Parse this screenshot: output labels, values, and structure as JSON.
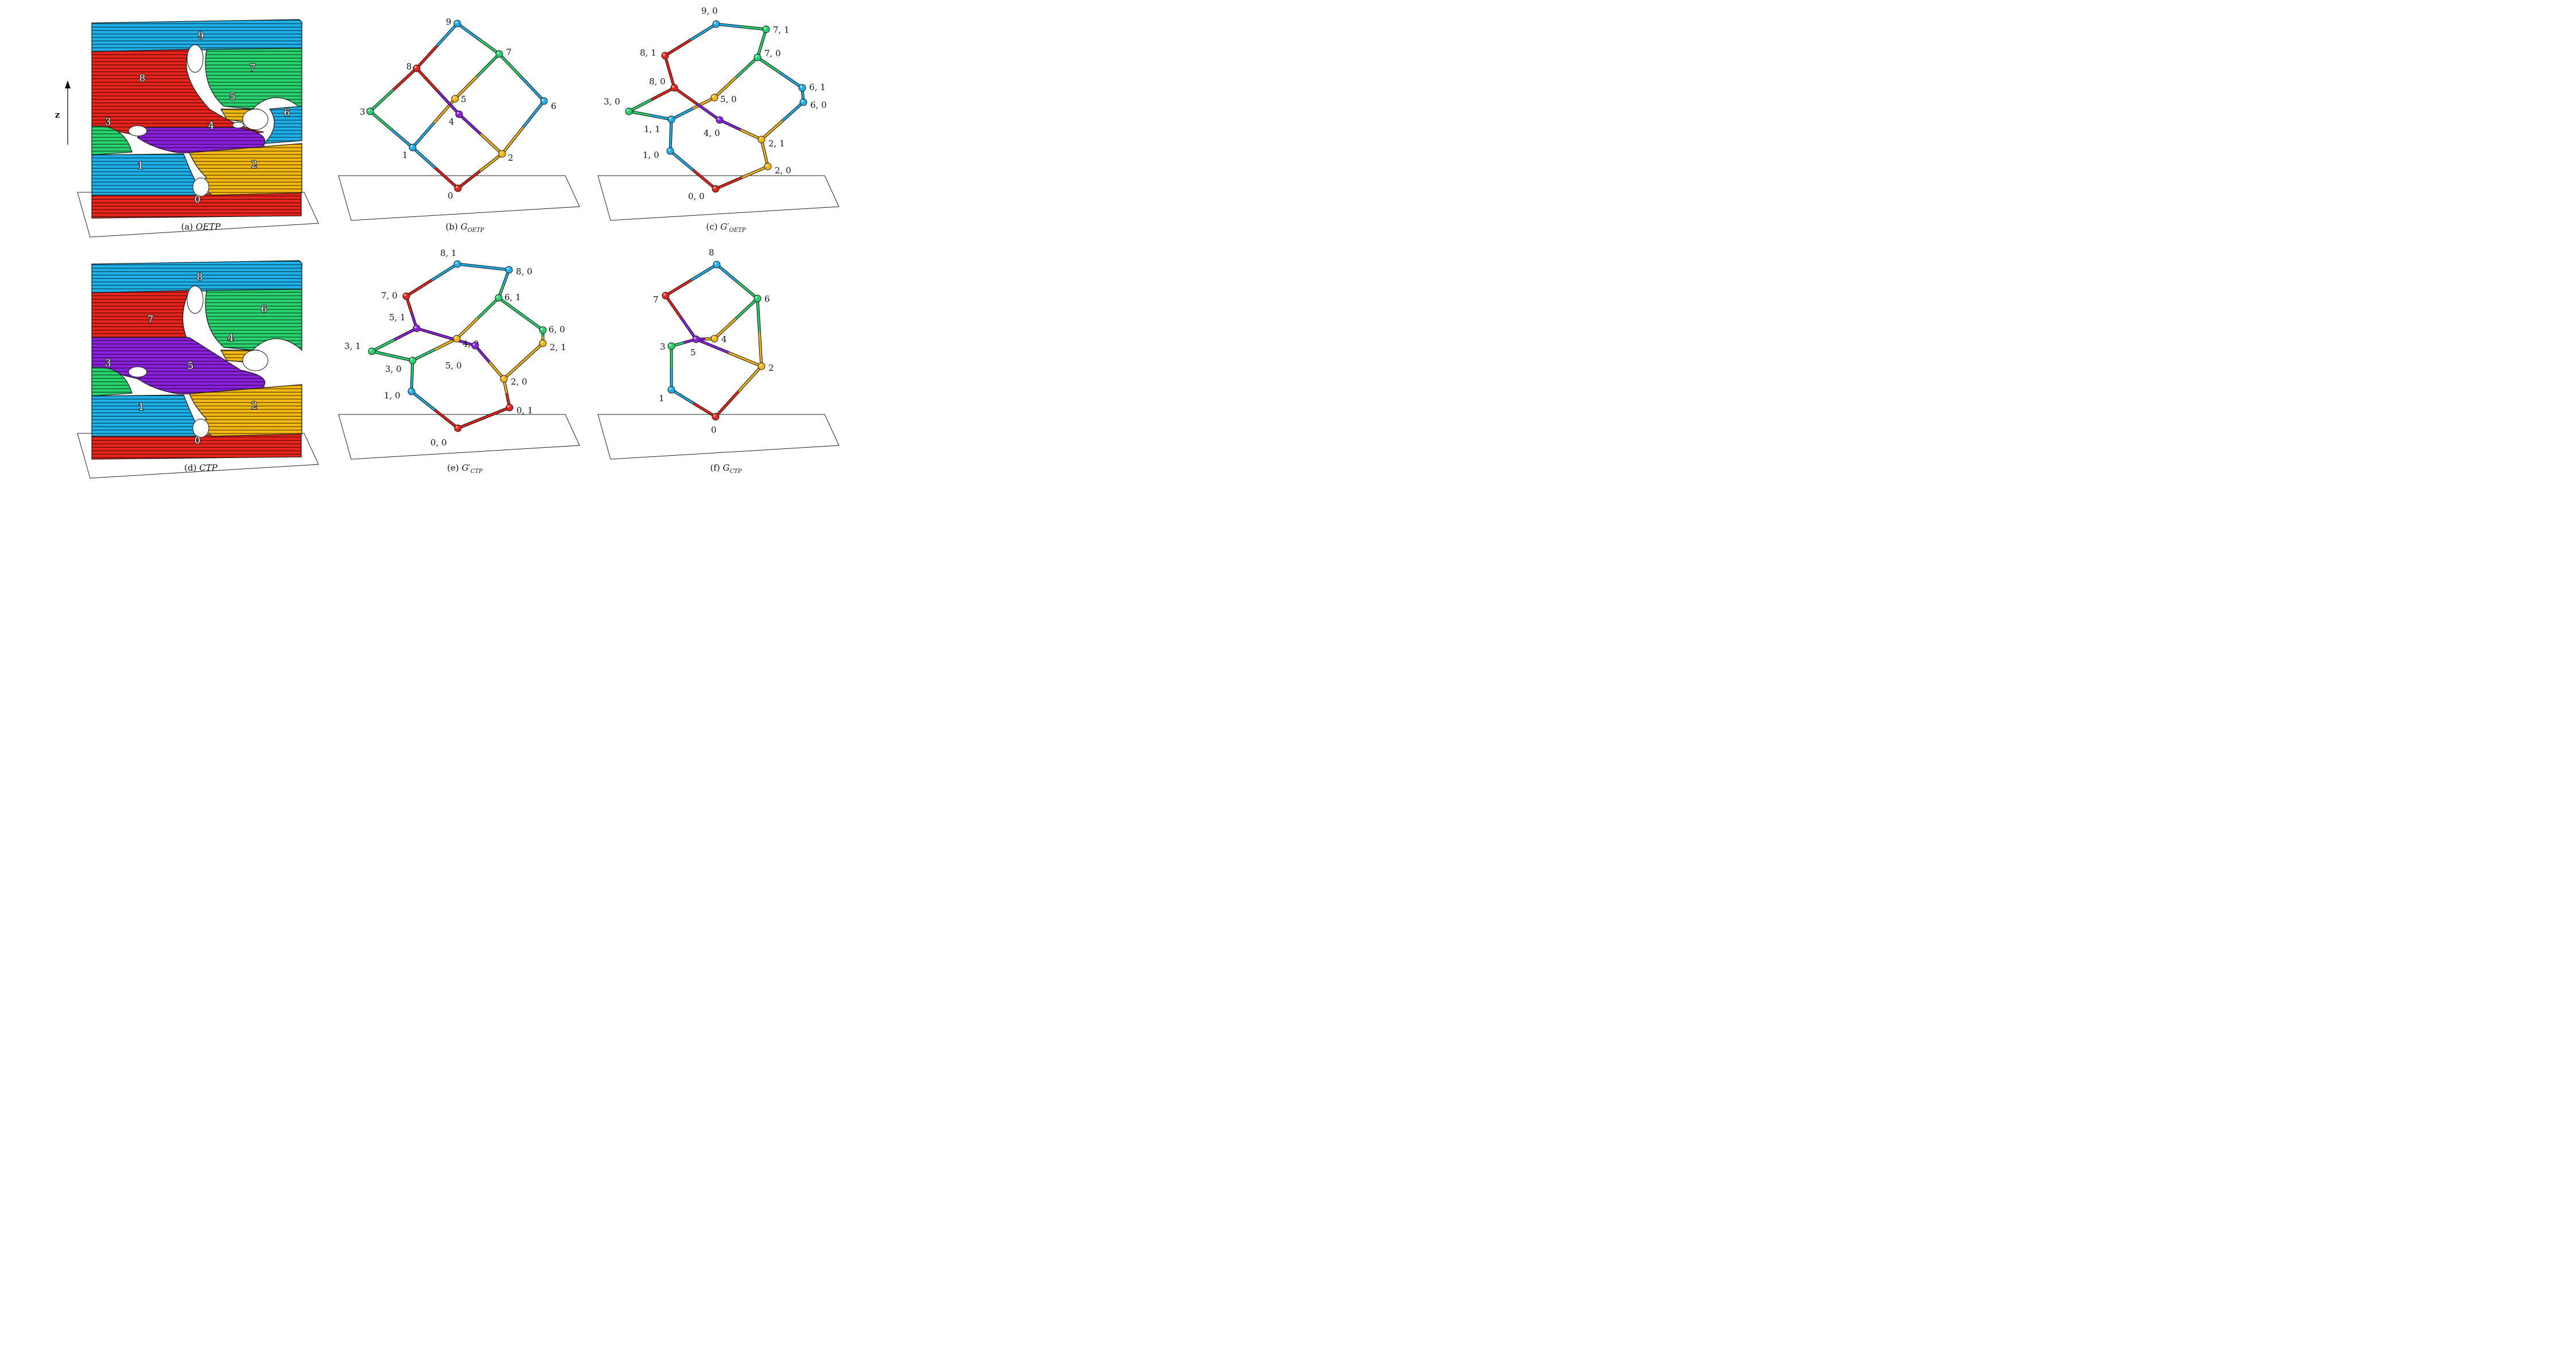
{
  "colors": {
    "red": "#e8231c",
    "blue": "#1fb0ea",
    "green": "#28d26d",
    "yellow": "#f3b813",
    "purple": "#8a1fdc"
  },
  "axis_label": "z",
  "panels": [
    {
      "id": "a",
      "caption_prefix": "(a) ",
      "caption_main": "OETP",
      "caption_sub": "",
      "caption_prime": ""
    },
    {
      "id": "b",
      "caption_prefix": "(b) ",
      "caption_main": "G",
      "caption_sub": "OETP",
      "caption_prime": ""
    },
    {
      "id": "c",
      "caption_prefix": "(c) ",
      "caption_main": "G",
      "caption_sub": "OETP",
      "caption_prime": "′"
    },
    {
      "id": "d",
      "caption_prefix": "(d) ",
      "caption_main": "CTP",
      "caption_sub": "",
      "caption_prime": ""
    },
    {
      "id": "e",
      "caption_prefix": "(e) ",
      "caption_main": "G",
      "caption_sub": "CTP",
      "caption_prime": "′"
    },
    {
      "id": "f",
      "caption_prefix": "(f) ",
      "caption_main": "G",
      "caption_sub": "CTP",
      "caption_prime": ""
    }
  ],
  "block_labels_a": [
    "9",
    "8",
    "7",
    "5",
    "3",
    "4",
    "6",
    "1",
    "2",
    "0"
  ],
  "block_labels_d": [
    "8",
    "7",
    "6",
    "4",
    "3",
    "5",
    "1",
    "2",
    "0"
  ],
  "graph_b": {
    "nodes": [
      {
        "label": "0",
        "color": "red"
      },
      {
        "label": "1",
        "color": "blue"
      },
      {
        "label": "2",
        "color": "yellow"
      },
      {
        "label": "3",
        "color": "green"
      },
      {
        "label": "4",
        "color": "purple"
      },
      {
        "label": "5",
        "color": "yellow"
      },
      {
        "label": "6",
        "color": "blue"
      },
      {
        "label": "7",
        "color": "green"
      },
      {
        "label": "8",
        "color": "red"
      },
      {
        "label": "9",
        "color": "blue"
      }
    ],
    "edges": [
      [
        0,
        1
      ],
      [
        0,
        2
      ],
      [
        1,
        3
      ],
      [
        1,
        5
      ],
      [
        2,
        4
      ],
      [
        2,
        6
      ],
      [
        3,
        8
      ],
      [
        4,
        8
      ],
      [
        5,
        7
      ],
      [
        6,
        7
      ],
      [
        7,
        9
      ],
      [
        8,
        9
      ]
    ]
  },
  "graph_c": {
    "nodes": [
      {
        "label": "0, 0",
        "color": "red"
      },
      {
        "label": "1, 0",
        "color": "blue"
      },
      {
        "label": "1, 1",
        "color": "blue"
      },
      {
        "label": "2, 0",
        "color": "yellow"
      },
      {
        "label": "2, 1",
        "color": "yellow"
      },
      {
        "label": "3, 0",
        "color": "green"
      },
      {
        "label": "4, 0",
        "color": "purple"
      },
      {
        "label": "5, 0",
        "color": "yellow"
      },
      {
        "label": "6, 0",
        "color": "blue"
      },
      {
        "label": "6, 1",
        "color": "blue"
      },
      {
        "label": "7, 0",
        "color": "green"
      },
      {
        "label": "7, 1",
        "color": "green"
      },
      {
        "label": "8, 0",
        "color": "red"
      },
      {
        "label": "8, 1",
        "color": "red"
      },
      {
        "label": "9, 0",
        "color": "blue"
      }
    ],
    "edges": [
      [
        0,
        1
      ],
      [
        0,
        3
      ],
      [
        1,
        2
      ],
      [
        3,
        4
      ],
      [
        2,
        5
      ],
      [
        2,
        7
      ],
      [
        5,
        12
      ],
      [
        4,
        6
      ],
      [
        6,
        12
      ],
      [
        7,
        10
      ],
      [
        4,
        8
      ],
      [
        8,
        9
      ],
      [
        9,
        10
      ],
      [
        10,
        11
      ],
      [
        11,
        14
      ],
      [
        14,
        13
      ],
      [
        13,
        12
      ]
    ]
  },
  "graph_e": {
    "nodes": [
      {
        "label": "0, 0",
        "color": "red"
      },
      {
        "label": "0, 1",
        "color": "red"
      },
      {
        "label": "1, 0",
        "color": "blue"
      },
      {
        "label": "2, 0",
        "color": "yellow"
      },
      {
        "label": "2, 1",
        "color": "yellow"
      },
      {
        "label": "3, 0",
        "color": "green"
      },
      {
        "label": "3, 1",
        "color": "green"
      },
      {
        "label": "4, 0",
        "color": "yellow"
      },
      {
        "label": "5, 0",
        "color": "purple"
      },
      {
        "label": "5, 1",
        "color": "purple"
      },
      {
        "label": "6, 0",
        "color": "green"
      },
      {
        "label": "6, 1",
        "color": "green"
      },
      {
        "label": "7, 0",
        "color": "red"
      },
      {
        "label": "8, 0",
        "color": "blue"
      },
      {
        "label": "8, 1",
        "color": "blue"
      }
    ],
    "edges": [
      [
        0,
        2
      ],
      [
        0,
        1
      ],
      [
        1,
        3
      ],
      [
        2,
        5
      ],
      [
        5,
        6
      ],
      [
        5,
        7
      ],
      [
        6,
        9
      ],
      [
        3,
        8
      ],
      [
        8,
        9
      ],
      [
        3,
        4
      ],
      [
        4,
        10
      ],
      [
        10,
        11
      ],
      [
        7,
        11
      ],
      [
        11,
        13
      ],
      [
        13,
        14
      ],
      [
        14,
        12
      ],
      [
        12,
        9
      ]
    ]
  },
  "graph_f": {
    "nodes": [
      {
        "label": "0",
        "color": "red"
      },
      {
        "label": "1",
        "color": "blue"
      },
      {
        "label": "2",
        "color": "yellow"
      },
      {
        "label": "3",
        "color": "green"
      },
      {
        "label": "4",
        "color": "yellow"
      },
      {
        "label": "5",
        "color": "purple"
      },
      {
        "label": "6",
        "color": "green"
      },
      {
        "label": "7",
        "color": "red"
      },
      {
        "label": "8",
        "color": "blue"
      }
    ],
    "edges": [
      [
        0,
        1
      ],
      [
        0,
        2
      ],
      [
        1,
        3
      ],
      [
        3,
        5
      ],
      [
        5,
        2
      ],
      [
        5,
        4
      ],
      [
        4,
        6
      ],
      [
        2,
        6
      ],
      [
        6,
        8
      ],
      [
        8,
        7
      ],
      [
        7,
        5
      ]
    ]
  }
}
